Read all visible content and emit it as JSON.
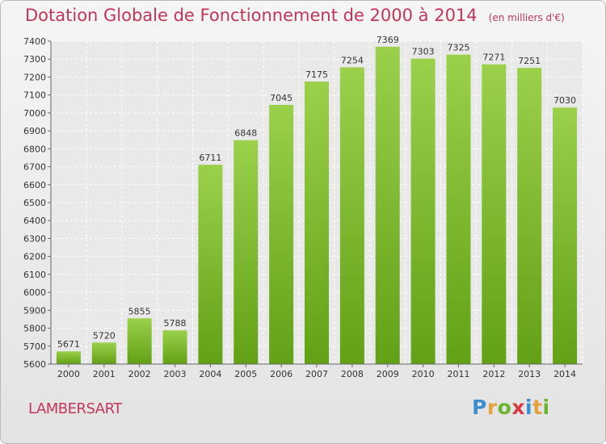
{
  "title": "Dotation Globale de Fonctionnement de 2000 à 2014",
  "unit_note": "(en milliers d'€)",
  "location": "LAMBERSART",
  "logo": "Proxiti",
  "colors": {
    "bar_top": "#9bd04b",
    "bar_bottom": "#62a116",
    "title": "#c0365d"
  },
  "chart_data": {
    "type": "bar",
    "categories": [
      "2000",
      "2001",
      "2002",
      "2003",
      "2004",
      "2005",
      "2006",
      "2007",
      "2008",
      "2009",
      "2010",
      "2011",
      "2012",
      "2013",
      "2014"
    ],
    "values": [
      5671,
      5720,
      5855,
      5788,
      6711,
      6848,
      7045,
      7175,
      7254,
      7369,
      7303,
      7325,
      7271,
      7251,
      7030
    ],
    "ylim": [
      5600,
      7400
    ],
    "yticks": [
      5600,
      5700,
      5800,
      5900,
      6000,
      6100,
      6200,
      6300,
      6400,
      6500,
      6600,
      6700,
      6800,
      6900,
      7000,
      7100,
      7200,
      7300,
      7400
    ],
    "grid": true,
    "data_labels": true
  }
}
